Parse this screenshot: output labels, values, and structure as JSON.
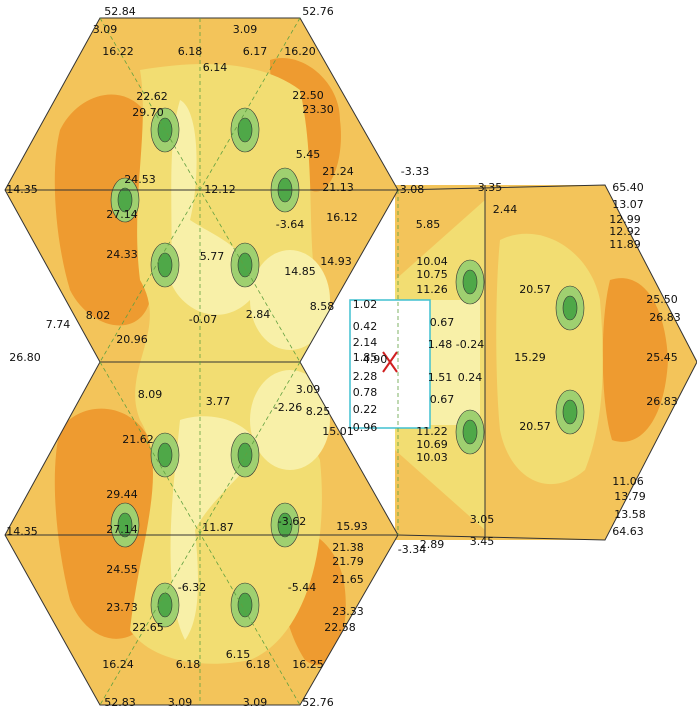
{
  "labels": [
    "52.84",
    "52.76",
    "3.09",
    "3.09",
    "16.22",
    "6.18",
    "6.17",
    "16.20",
    "6.14",
    "22.62",
    "29.70",
    "22.50",
    "23.30",
    "24.53",
    "12.12",
    "27.14",
    "24.33",
    "20.96",
    "14.35",
    "5.45",
    "21.24",
    "21.13",
    "-3.64",
    "16.12",
    "5.77",
    "14.85",
    "14.93",
    "8.58",
    "2.84",
    "-0.07",
    "8.02",
    "7.74",
    "26.80",
    "-3.33",
    "-3.08",
    "3.35",
    "2.44",
    "5.85",
    "10.04",
    "10.75",
    "11.26",
    "1.02",
    "0.42",
    "2.14",
    "1.85",
    "2.28",
    "0.78",
    "0.22",
    "0.96",
    "0.67",
    "1.48",
    "-0.24",
    "1.51",
    "0.24",
    "0.67",
    "4.90",
    "15.29",
    "20.57",
    "20.57",
    "25.50",
    "26.83",
    "25.45",
    "26.83",
    "65.40",
    "13.07",
    "12.99",
    "12.92",
    "11.89",
    "11.06",
    "13.79",
    "13.58",
    "64.63",
    "8.09",
    "3.77",
    "-2.26",
    "8.25",
    "3.09",
    "21.62",
    "15.01",
    "29.44",
    "11.87",
    "-3.62",
    "15.93",
    "14.35",
    "27.14",
    "21.38",
    "21.79",
    "21.65",
    "24.55",
    "-6.32",
    "-5.44",
    "23.73",
    "22.65",
    "23.33",
    "22.58",
    "16.24",
    "6.18",
    "6.15",
    "6.18",
    "16.25",
    "52.83",
    "52.76",
    "3.09",
    "3.09",
    "2.89",
    "3.05",
    "3.45",
    "-3.34",
    "11.22",
    "10.69",
    "10.03"
  ]
}
